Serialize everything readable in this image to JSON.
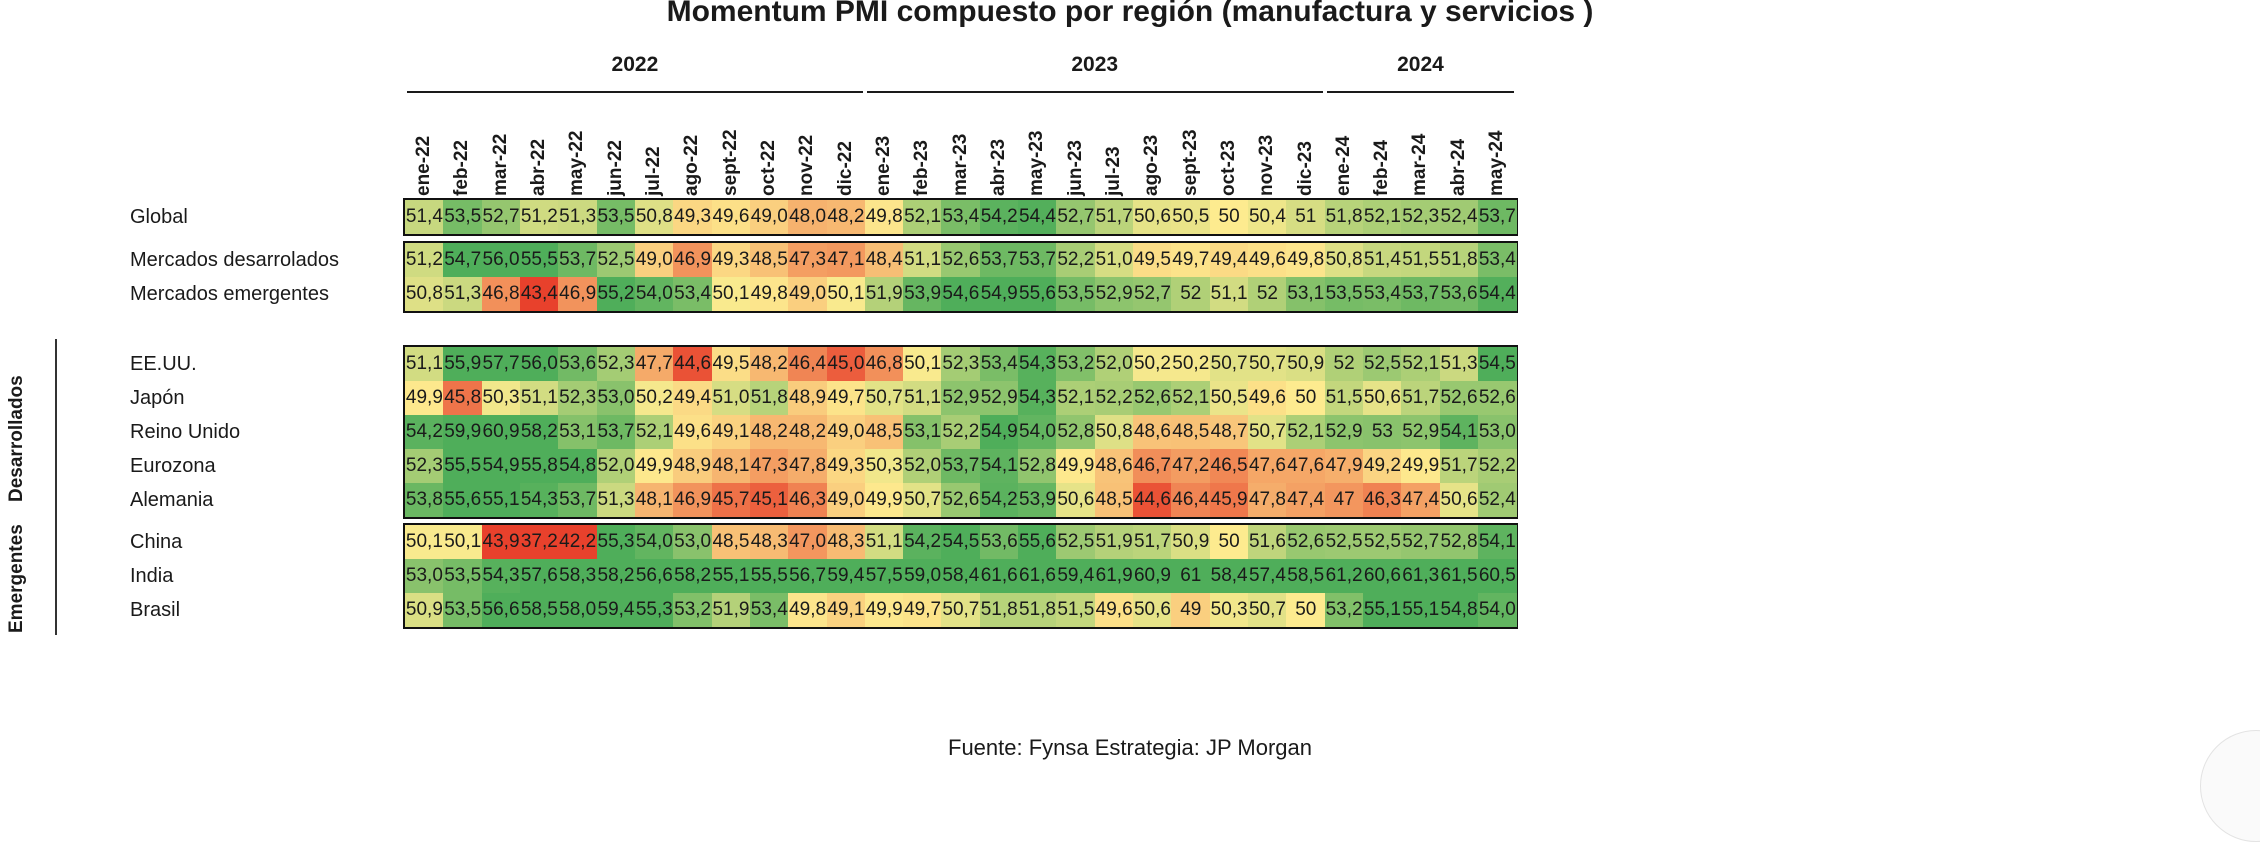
{
  "chart_data": {
    "type": "heatmap",
    "title": "Momentum PMI compuesto por región (manufactura y servicios )",
    "source": "Fuente: Fynsa Estrategia: JP Morgan",
    "years": [
      "2022",
      "2023",
      "2024"
    ],
    "columns": [
      "ene-22",
      "feb-22",
      "mar-22",
      "abr-22",
      "may-22",
      "jun-22",
      "jul-22",
      "ago-22",
      "sept-22",
      "oct-22",
      "nov-22",
      "dic-22",
      "ene-23",
      "feb-23",
      "mar-23",
      "abr-23",
      "may-23",
      "jun-23",
      "jul-23",
      "ago-23",
      "sept-23",
      "oct-23",
      "nov-23",
      "dic-23",
      "ene-24",
      "feb-24",
      "mar-24",
      "abr-24",
      "may-24"
    ],
    "groups": [
      {
        "side_label": "",
        "rows": [
          {
            "label": "Global",
            "values": [
              "51,4",
              "53,5",
              "52,7",
              "51,2",
              "51,3",
              "53,5",
              "50,8",
              "49,3",
              "49,6",
              "49,0",
              "48,0",
              "48,2",
              "49,8",
              "52,1",
              "53,4",
              "54,2",
              "54,4",
              "52,7",
              "51,7",
              "50,6",
              "50,5",
              "50",
              "50,4",
              "51",
              "51,8",
              "52,1",
              "52,3",
              "52,4",
              "53,7"
            ]
          }
        ]
      },
      {
        "side_label": "",
        "rows": [
          {
            "label": "Mercados desarrolados",
            "values": [
              "51,2",
              "54,7",
              "56,0",
              "55,5",
              "53,7",
              "52,5",
              "49,0",
              "46,9",
              "49,3",
              "48,5",
              "47,3",
              "47,1",
              "48,4",
              "51,1",
              "52,6",
              "53,7",
              "53,7",
              "52,2",
              "51,0",
              "49,5",
              "49,7",
              "49,4",
              "49,6",
              "49,8",
              "50,8",
              "51,4",
              "51,5",
              "51,8",
              "53,4"
            ]
          },
          {
            "label": "Mercados emergentes",
            "values": [
              "50,8",
              "51,3",
              "46,8",
              "43,4",
              "46,9",
              "55,2",
              "54,0",
              "53,4",
              "50,1",
              "49,8",
              "49,0",
              "50,1",
              "51,9",
              "53,9",
              "54,6",
              "54,9",
              "55,6",
              "53,5",
              "52,9",
              "52,7",
              "52",
              "51,1",
              "52",
              "53,1",
              "53,5",
              "53,4",
              "53,7",
              "53,6",
              "54,4"
            ]
          }
        ]
      },
      {
        "side_label": "Desarrollados",
        "rows": [
          {
            "label": "EE.UU.",
            "values": [
              "51,1",
              "55,9",
              "57,7",
              "56,0",
              "53,6",
              "52,3",
              "47,7",
              "44,6",
              "49,5",
              "48,2",
              "46,4",
              "45,0",
              "46,8",
              "50,1",
              "52,3",
              "53,4",
              "54,3",
              "53,2",
              "52,0",
              "50,2",
              "50,2",
              "50,7",
              "50,7",
              "50,9",
              "52",
              "52,5",
              "52,1",
              "51,3",
              "54,5"
            ]
          },
          {
            "label": "Japón",
            "values": [
              "49,9",
              "45,8",
              "50,3",
              "51,1",
              "52,3",
              "53,0",
              "50,2",
              "49,4",
              "51,0",
              "51,8",
              "48,9",
              "49,7",
              "50,7",
              "51,1",
              "52,9",
              "52,9",
              "54,3",
              "52,1",
              "52,2",
              "52,6",
              "52,1",
              "50,5",
              "49,6",
              "50",
              "51,5",
              "50,6",
              "51,7",
              "52,6",
              "52,6"
            ]
          },
          {
            "label": "Reino Unido",
            "values": [
              "54,2",
              "59,9",
              "60,9",
              "58,2",
              "53,1",
              "53,7",
              "52,1",
              "49,6",
              "49,1",
              "48,2",
              "48,2",
              "49,0",
              "48,5",
              "53,1",
              "52,2",
              "54,9",
              "54,0",
              "52,8",
              "50,8",
              "48,6",
              "48,5",
              "48,7",
              "50,7",
              "52,1",
              "52,9",
              "53",
              "52,9",
              "54,1",
              "53,0"
            ]
          },
          {
            "label": "Eurozona",
            "values": [
              "52,3",
              "55,5",
              "54,9",
              "55,8",
              "54,8",
              "52,0",
              "49,9",
              "48,9",
              "48,1",
              "47,3",
              "47,8",
              "49,3",
              "50,3",
              "52,0",
              "53,7",
              "54,1",
              "52,8",
              "49,9",
              "48,6",
              "46,7",
              "47,2",
              "46,5",
              "47,6",
              "47,6",
              "47,9",
              "49,2",
              "49,9",
              "51,7",
              "52,2"
            ]
          },
          {
            "label": "Alemania",
            "values": [
              "53,8",
              "55,6",
              "55,1",
              "54,3",
              "53,7",
              "51,3",
              "48,1",
              "46,9",
              "45,7",
              "45,1",
              "46,3",
              "49,0",
              "49,9",
              "50,7",
              "52,6",
              "54,2",
              "53,9",
              "50,6",
              "48,5",
              "44,6",
              "46,4",
              "45,9",
              "47,8",
              "47,4",
              "47",
              "46,3",
              "47,4",
              "50,6",
              "52,4"
            ]
          }
        ]
      },
      {
        "side_label": "Emergentes",
        "rows": [
          {
            "label": "China",
            "values": [
              "50,1",
              "50,1",
              "43,9",
              "37,2",
              "42,2",
              "55,3",
              "54,0",
              "53,0",
              "48,5",
              "48,3",
              "47,0",
              "48,3",
              "51,1",
              "54,2",
              "54,5",
              "53,6",
              "55,6",
              "52,5",
              "51,9",
              "51,7",
              "50,9",
              "50",
              "51,6",
              "52,6",
              "52,5",
              "52,5",
              "52,7",
              "52,8",
              "54,1"
            ]
          },
          {
            "label": "India",
            "values": [
              "53,0",
              "53,5",
              "54,3",
              "57,6",
              "58,3",
              "58,2",
              "56,6",
              "58,2",
              "55,1",
              "55,5",
              "56,7",
              "59,4",
              "57,5",
              "59,0",
              "58,4",
              "61,6",
              "61,6",
              "59,4",
              "61,9",
              "60,9",
              "61",
              "58,4",
              "57,4",
              "58,5",
              "61,2",
              "60,6",
              "61,3",
              "61,5",
              "60,5"
            ]
          },
          {
            "label": "Brasil",
            "values": [
              "50,9",
              "53,5",
              "56,6",
              "58,5",
              "58,0",
              "59,4",
              "55,3",
              "53,2",
              "51,9",
              "53,4",
              "49,8",
              "49,1",
              "49,9",
              "49,7",
              "50,7",
              "51,8",
              "51,8",
              "51,5",
              "49,6",
              "50,6",
              "49",
              "50,3",
              "50,7",
              "50",
              "53,2",
              "55,1",
              "55,1",
              "54,8",
              "54,0"
            ]
          }
        ]
      }
    ],
    "color_scale": {
      "low": "#e8412c",
      "mid": "#fdeb8f",
      "high": "#4fae5a"
    }
  }
}
